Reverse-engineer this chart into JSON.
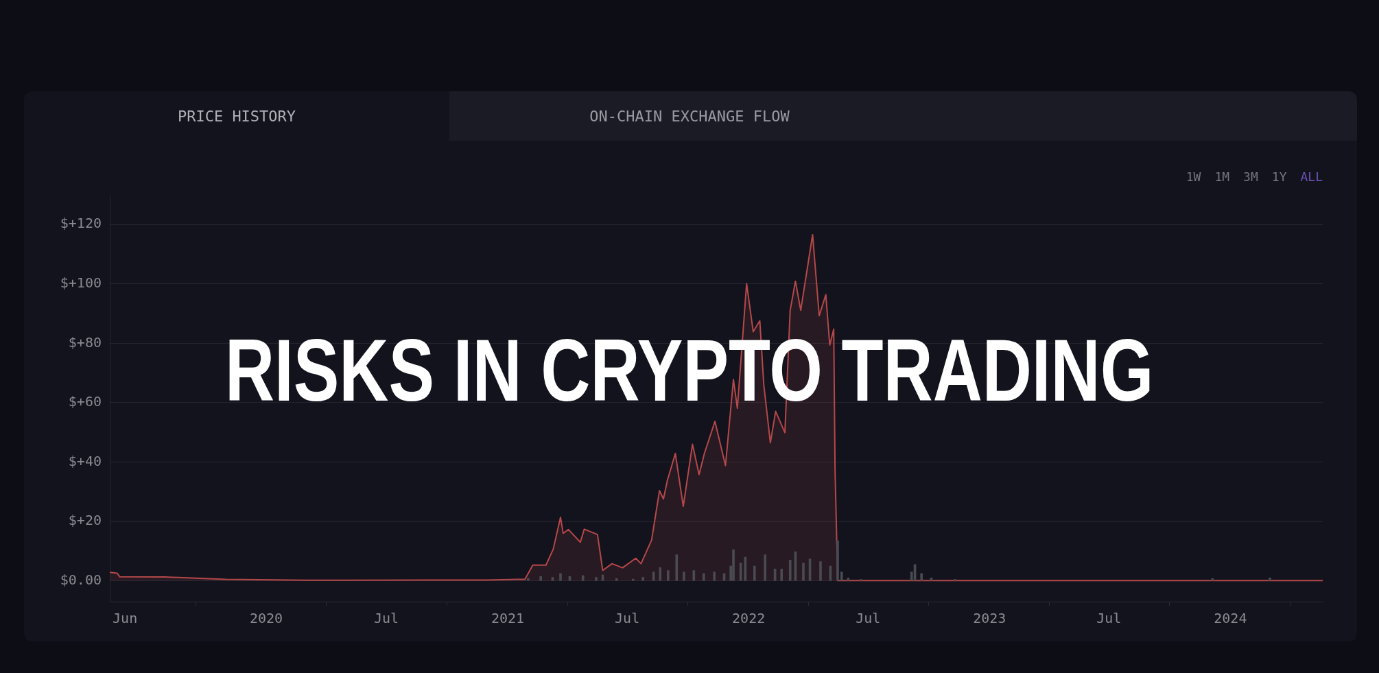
{
  "chart_data": {
    "type": "area",
    "title": "RISKS IN CRYPTO TRADING",
    "annotations": [
      "PRICE HISTORY",
      "ON-CHAIN EXCHANGE FLOW",
      "1W",
      "1M",
      "3M",
      "1Y",
      "ALL"
    ],
    "series": [
      {
        "type": "bar",
        "color": "#4a4a52",
        "x": [
          "2021-02-01",
          "2021-02-20",
          "2021-03-10",
          "2021-03-22",
          "2021-04-05",
          "2021-04-25",
          "2021-05-15",
          "2021-05-25",
          "2021-06-15",
          "2021-07-10",
          "2021-07-25",
          "2021-08-10",
          "2021-08-20",
          "2021-09-01",
          "2021-09-14",
          "2021-09-25",
          "2021-10-10",
          "2021-10-25",
          "2021-11-10",
          "2021-11-25",
          "2021-12-05",
          "2021-12-09",
          "2021-12-20",
          "2021-12-27",
          "2022-01-10",
          "2022-01-26",
          "2022-02-10",
          "2022-02-20",
          "2022-03-05",
          "2022-03-13",
          "2022-03-25",
          "2022-04-04",
          "2022-04-20",
          "2022-05-05",
          "2022-05-16",
          "2022-05-22",
          "2022-06-01",
          "2022-06-20",
          "2022-09-05",
          "2022-09-10",
          "2022-09-20",
          "2022-10-05",
          "2022-11-10",
          "2023-12-05",
          "2024-03-01"
        ],
        "values": [
          0.8,
          1.5,
          1.2,
          2.5,
          1.5,
          1.8,
          1.2,
          2.0,
          0.8,
          0.6,
          1.2,
          3.0,
          4.5,
          3.5,
          8.8,
          3.0,
          3.5,
          2.5,
          3.0,
          2.5,
          5.0,
          10.5,
          6.0,
          8.0,
          5.0,
          8.8,
          4.0,
          4.0,
          7.0,
          9.8,
          6.0,
          7.4,
          6.5,
          5.0,
          13.5,
          3.0,
          1.0,
          0.5,
          3.0,
          5.5,
          2.5,
          1.0,
          0.5,
          0.8,
          1.0
        ]
      },
      {
        "color": "#b5484a",
        "x": [
          "2019-05-09",
          "2019-05-20",
          "2019-05-24",
          "2019-08-01",
          "2019-11-01",
          "2020-03-01",
          "2020-09-01",
          "2020-12-01",
          "2021-01-15",
          "2021-01-27",
          "2021-02-08",
          "2021-02-28",
          "2021-03-11",
          "2021-03-22",
          "2021-03-26",
          "2021-04-03",
          "2021-04-21",
          "2021-04-27",
          "2021-05-17",
          "2021-05-25",
          "2021-06-08",
          "2021-06-24",
          "2021-07-14",
          "2021-07-22",
          "2021-08-07",
          "2021-08-19",
          "2021-08-25",
          "2021-08-31",
          "2021-09-12",
          "2021-09-24",
          "2021-10-08",
          "2021-10-18",
          "2021-10-26",
          "2021-11-11",
          "2021-11-27",
          "2021-12-09",
          "2021-12-15",
          "2021-12-29",
          "2022-01-08",
          "2022-01-18",
          "2022-01-24",
          "2022-02-03",
          "2022-02-11",
          "2022-02-25",
          "2022-03-05",
          "2022-03-13",
          "2022-03-21",
          "2022-04-08",
          "2022-04-18",
          "2022-04-28",
          "2022-05-04",
          "2022-05-10",
          "2022-05-12",
          "2022-05-16",
          "2022-06-01",
          "2024-05-20"
        ],
        "values": [
          2.9,
          2.6,
          1.4,
          1.3,
          0.5,
          0.2,
          0.3,
          0.3,
          0.5,
          0.5,
          5.3,
          5.3,
          10.7,
          21.4,
          16.0,
          17.3,
          13.0,
          17.4,
          15.6,
          3.5,
          5.8,
          4.4,
          7.6,
          5.8,
          13.7,
          30.4,
          27.6,
          33.9,
          42.9,
          25.1,
          46.0,
          35.8,
          42.9,
          53.7,
          38.8,
          67.8,
          58.1,
          100.1,
          83.9,
          87.6,
          66.1,
          46.5,
          57.1,
          49.9,
          91.1,
          100.9,
          91.1,
          116.6,
          89.3,
          96.4,
          79.4,
          84.8,
          37.4,
          0.1,
          0.1,
          0.1
        ]
      }
    ],
    "xlim": [
      "2019-05-09",
      "2024-05-20"
    ],
    "xticks": [
      {
        "value": "2019-06-01",
        "label": "Jun"
      },
      {
        "value": "2020-01-01",
        "label": "2020"
      },
      {
        "value": "2020-07-01",
        "label": "Jul"
      },
      {
        "value": "2021-01-01",
        "label": "2021"
      },
      {
        "value": "2021-07-01",
        "label": "Jul"
      },
      {
        "value": "2022-01-01",
        "label": "2022"
      },
      {
        "value": "2022-07-01",
        "label": "Jul"
      },
      {
        "value": "2023-01-01",
        "label": "2023"
      },
      {
        "value": "2023-07-01",
        "label": "Jul"
      },
      {
        "value": "2024-01-01",
        "label": "2024"
      }
    ],
    "ylim": [
      -7,
      130
    ],
    "yticks": [
      {
        "value": 0,
        "label": "$0.00"
      },
      {
        "value": 20,
        "label": "$+20"
      },
      {
        "value": 40,
        "label": "$+40"
      },
      {
        "value": 60,
        "label": "$+60"
      },
      {
        "value": 80,
        "label": "$+80"
      },
      {
        "value": 100,
        "label": "$+100"
      },
      {
        "value": 120,
        "label": "$+120"
      }
    ],
    "grid": "y",
    "legend": false,
    "marker": "none"
  }
}
